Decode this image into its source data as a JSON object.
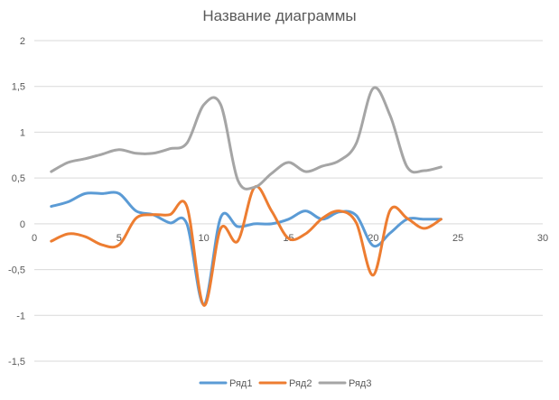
{
  "chart_data": {
    "type": "line",
    "title": "Название диаграммы",
    "xlabel": "",
    "ylabel": "",
    "xlim": [
      0,
      30
    ],
    "ylim": [
      -1.5,
      2
    ],
    "x_ticks": [
      0,
      5,
      10,
      15,
      20,
      25,
      30
    ],
    "y_ticks": [
      2,
      1.5,
      1,
      0.5,
      0,
      -0.5,
      -1,
      -1.5
    ],
    "x_tick_labels": [
      "0",
      "5",
      "10",
      "15",
      "20",
      "25",
      "30"
    ],
    "y_tick_labels": [
      "2",
      "1,5",
      "1",
      "0,5",
      "0",
      "-0,5",
      "-1",
      "-1,5"
    ],
    "grid": true,
    "smooth": true,
    "legend_position": "bottom",
    "x": [
      1,
      2,
      3,
      4,
      5,
      6,
      7,
      8,
      9,
      10,
      11,
      12,
      13,
      14,
      15,
      16,
      17,
      18,
      19,
      20,
      21,
      22,
      23,
      24
    ],
    "series": [
      {
        "name": "Ряд1",
        "color": "#5B9BD5",
        "values": [
          0.19,
          0.24,
          0.33,
          0.33,
          0.33,
          0.14,
          0.1,
          0.01,
          0.0,
          -0.88,
          0.07,
          -0.03,
          0.0,
          0.0,
          0.05,
          0.14,
          0.05,
          0.13,
          0.09,
          -0.24,
          -0.1,
          0.05,
          0.05,
          0.05
        ]
      },
      {
        "name": "Ряд2",
        "color": "#ED7D31",
        "values": [
          -0.19,
          -0.11,
          -0.14,
          -0.23,
          -0.23,
          0.06,
          0.1,
          0.1,
          0.19,
          -0.89,
          -0.05,
          -0.19,
          0.4,
          0.14,
          -0.16,
          -0.11,
          0.06,
          0.14,
          0.01,
          -0.56,
          0.15,
          0.06,
          -0.05,
          0.05
        ]
      },
      {
        "name": "Ряд3",
        "color": "#A5A5A5",
        "values": [
          0.57,
          0.67,
          0.71,
          0.76,
          0.81,
          0.77,
          0.77,
          0.82,
          0.88,
          1.3,
          1.3,
          0.48,
          0.4,
          0.55,
          0.67,
          0.57,
          0.63,
          0.69,
          0.88,
          1.48,
          1.18,
          0.62,
          0.58,
          0.62
        ]
      }
    ]
  }
}
